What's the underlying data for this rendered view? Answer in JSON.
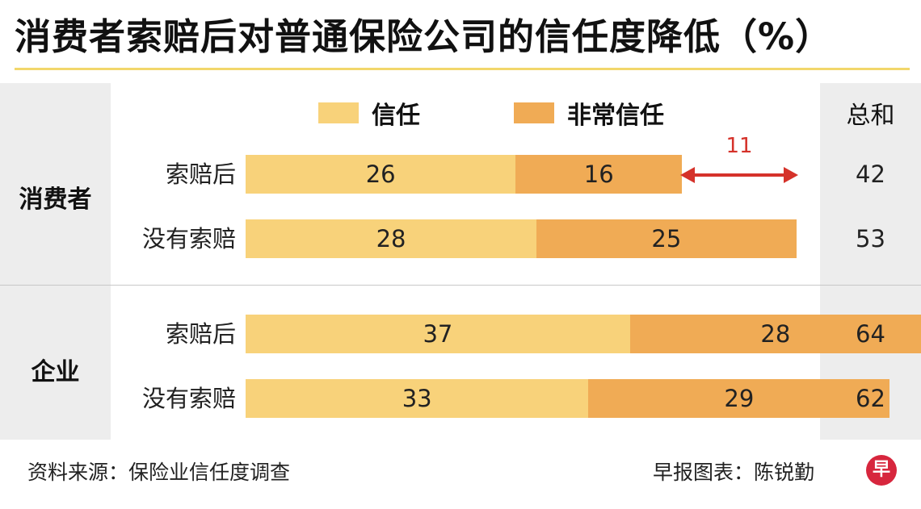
{
  "header": {
    "title": "消费者索赔后对普通保险公司的信任度降低",
    "unit": "（%）"
  },
  "legend": {
    "items": [
      {
        "label": "信任",
        "color": "#f8d27a"
      },
      {
        "label": "非常信任",
        "color": "#f0ab55"
      }
    ],
    "total_header": "总和"
  },
  "groups": [
    {
      "label": "消费者"
    },
    {
      "label": "企业"
    }
  ],
  "annotation": {
    "difference": "11"
  },
  "footer": {
    "source": "资料来源：保险业信任度调查",
    "credit": "早报图表：陈锐勤",
    "logo": "早"
  },
  "chart_data": {
    "type": "bar",
    "orientation": "horizontal",
    "stacked": true,
    "title": "消费者索赔后对普通保险公司的信任度降低（%）",
    "categories": [
      "索赔后",
      "没有索赔",
      "索赔后",
      "没有索赔"
    ],
    "category_groups": [
      "消费者",
      "消费者",
      "企业",
      "企业"
    ],
    "series": [
      {
        "name": "信任",
        "values": [
          26,
          28,
          37,
          33
        ],
        "color": "#f8d27a"
      },
      {
        "name": "非常信任",
        "values": [
          16,
          25,
          28,
          29
        ],
        "color": "#f0ab55"
      }
    ],
    "totals": [
      42,
      53,
      64,
      62
    ],
    "legend_position": "top",
    "grid": false
  }
}
